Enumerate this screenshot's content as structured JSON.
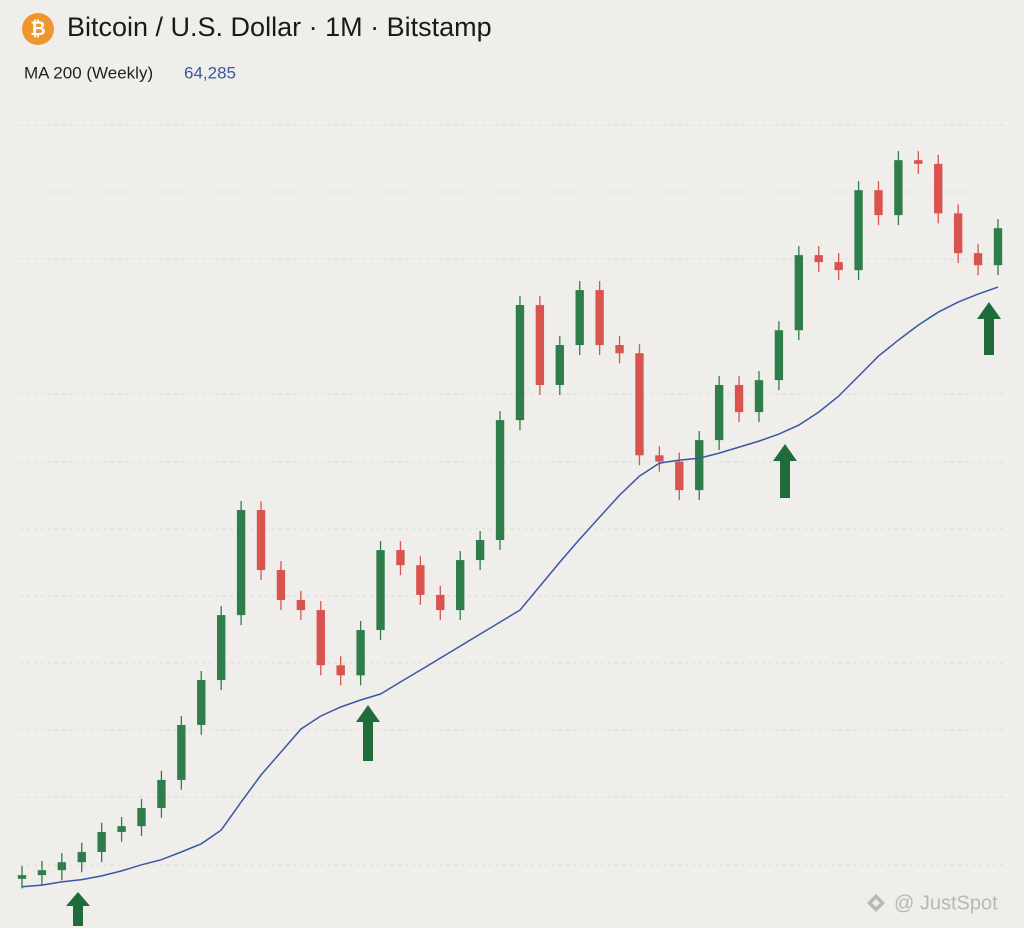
{
  "header": {
    "symbol": "₿"
  },
  "chart_data": {
    "type": "candlestick",
    "title": "Bitcoin / U.S. Dollar · 1M · Bitstamp",
    "log_scale": true,
    "ylim": [
      100,
      1000000
    ],
    "up_color": "#2f7d4a",
    "down_color": "#d9534f",
    "categories": [
      null,
      null,
      null,
      null,
      null,
      null,
      null,
      null,
      null,
      null,
      null,
      null,
      null,
      null,
      null,
      null,
      null,
      null,
      null,
      null,
      null,
      null,
      null,
      null,
      null,
      null,
      null,
      null,
      null,
      null,
      null,
      null,
      null,
      null,
      null,
      null,
      null,
      null,
      null,
      null,
      null,
      null,
      null,
      null,
      null,
      null,
      null,
      null,
      null,
      null
    ],
    "open": [
      125,
      130,
      137,
      149,
      166,
      205,
      218,
      264,
      355,
      634,
      1018,
      2020,
      6120,
      3250,
      2370,
      2130,
      1190,
      1070,
      1725,
      4010,
      3420,
      2500,
      2130,
      3610,
      4460,
      15800,
      53200,
      22900,
      34900,
      62300,
      34900,
      32000,
      10900,
      10200,
      7550,
      12800,
      22900,
      17200,
      24100,
      40800,
      90100,
      83700,
      76900,
      178800,
      137400,
      245400,
      236000,
      140000,
      92000,
      81000
    ],
    "high": [
      143,
      151,
      164,
      183,
      226,
      240,
      290,
      391,
      697,
      1120,
      2222,
      6732,
      6700,
      3575,
      2607,
      2343,
      1309,
      1898,
      4411,
      4411,
      3762,
      2750,
      3971,
      4906,
      17380,
      58520,
      58520,
      38390,
      68530,
      68530,
      38390,
      35200,
      11990,
      11220,
      14080,
      25190,
      25190,
      26510,
      44880,
      99110,
      99110,
      92070,
      196680,
      196680,
      269940,
      269940,
      259600,
      154000,
      101200,
      131670
    ],
    "low": [
      113,
      117,
      123,
      134,
      149,
      185,
      196,
      238,
      320,
      571,
      916,
      1818,
      2925,
      2133,
      1917,
      1071,
      963,
      963,
      1553,
      3078,
      2250,
      1917,
      1917,
      3249,
      4014,
      14220,
      20610,
      20610,
      31410,
      31410,
      28800,
      9810,
      9180,
      6795,
      6795,
      11520,
      15480,
      15480,
      21690,
      36720,
      75330,
      69210,
      69210,
      123660,
      123660,
      212400,
      126000,
      82800,
      72900,
      72900
    ],
    "close": [
      130,
      137,
      149,
      166,
      205,
      218,
      264,
      355,
      634,
      1018,
      2020,
      6120,
      3250,
      2370,
      2130,
      1190,
      1070,
      1725,
      4010,
      3420,
      2500,
      2130,
      3610,
      4460,
      15800,
      53200,
      22900,
      34900,
      62300,
      34900,
      32000,
      10900,
      10200,
      7550,
      12800,
      22900,
      17200,
      24100,
      40800,
      90100,
      83700,
      76900,
      178800,
      137400,
      245400,
      236000,
      140000,
      92000,
      81000,
      119700
    ],
    "series": [
      {
        "name": "MA 200 (Weekly)",
        "color": "#3a56a5",
        "values": [
          115,
          117,
          121,
          124,
          129,
          136,
          145,
          153,
          166,
          181,
          209,
          281,
          374,
          476,
          607,
          697,
          766,
          825,
          879,
          997,
          1131,
          1284,
          1457,
          1654,
          1877,
          2130,
          2744,
          3534,
          4505,
          5682,
          7167,
          8755,
          10040,
          10360,
          10580,
          11160,
          11890,
          12670,
          13640,
          14990,
          17200,
          20360,
          25140,
          31050,
          36760,
          43050,
          49360,
          54880,
          59700,
          64285
        ],
        "value_labels": [
          null,
          null,
          null,
          null,
          null,
          null,
          null,
          null,
          null,
          null,
          null,
          null,
          null,
          null,
          null,
          null,
          null,
          null,
          null,
          null,
          null,
          null,
          null,
          null,
          null,
          null,
          null,
          null,
          null,
          null,
          null,
          null,
          null,
          null,
          null,
          null,
          null,
          null,
          null,
          null,
          null,
          null,
          null,
          null,
          null,
          null,
          null,
          null,
          null,
          "64,285"
        ]
      }
    ]
  },
  "watermark": "@ JustSpot"
}
